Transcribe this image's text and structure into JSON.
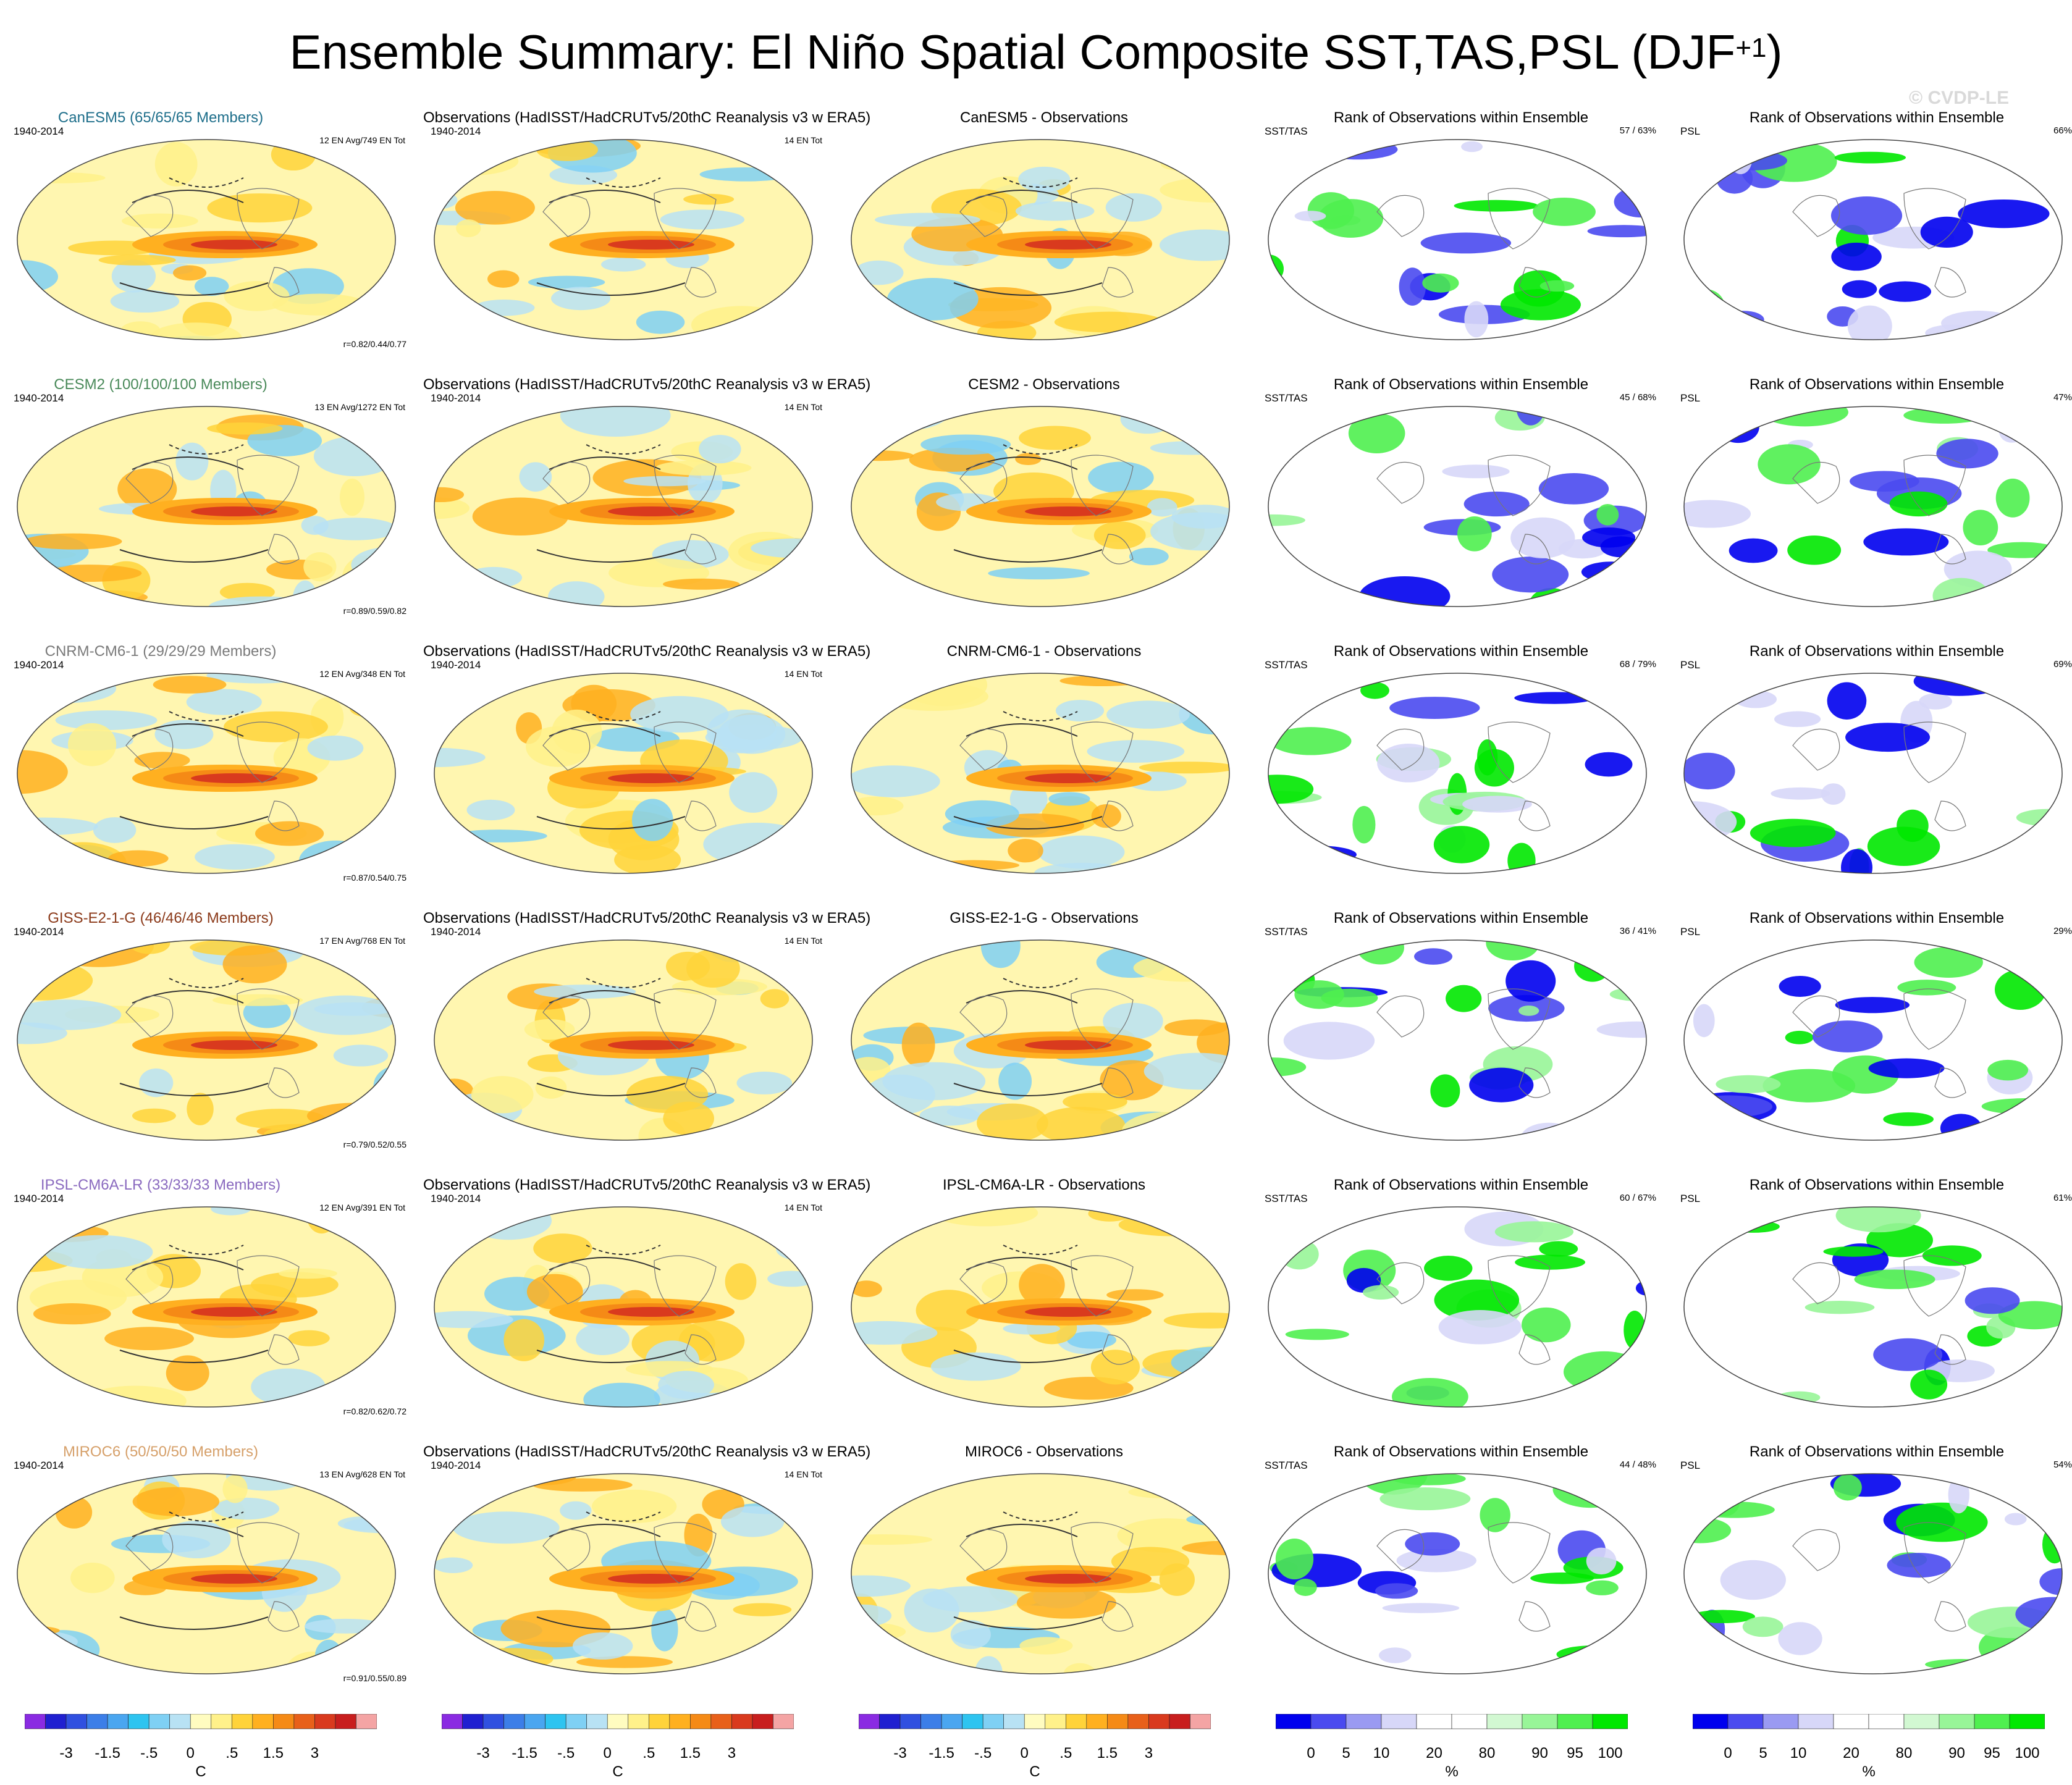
{
  "title": "Ensemble Summary: El Niño Spatial Composite SST,TAS,PSL (DJF",
  "title_sup": "+1",
  "title_close": ")",
  "watermark": "© CVDP-LE",
  "rows": [
    {
      "model": "CanESM5 (65/65/65 Members)",
      "model_color": "#1f6f8b",
      "en_avg": "12 EN Avg/749 EN Tot",
      "corr": "r=0.82/0.44/0.77",
      "diff_title": "CanESM5 - Observations",
      "sst_pct": "57 /  63%",
      "psl_pct": "66%"
    },
    {
      "model": "CESM2 (100/100/100 Members)",
      "model_color": "#4a8a5a",
      "en_avg": "13 EN Avg/1272 EN Tot",
      "corr": "r=0.89/0.59/0.82",
      "diff_title": "CESM2 - Observations",
      "sst_pct": "45 /  68%",
      "psl_pct": "47%"
    },
    {
      "model": "CNRM-CM6-1 (29/29/29 Members)",
      "model_color": "#7a7a7a",
      "en_avg": "12 EN Avg/348 EN Tot",
      "corr": "r=0.87/0.54/0.75",
      "diff_title": "CNRM-CM6-1 - Observations",
      "sst_pct": "68 /  79%",
      "psl_pct": "69%"
    },
    {
      "model": "GISS-E2-1-G (46/46/46 Members)",
      "model_color": "#8b3a1a",
      "en_avg": "17 EN Avg/768 EN Tot",
      "corr": "r=0.79/0.52/0.55",
      "diff_title": "GISS-E2-1-G - Observations",
      "sst_pct": "36 /  41%",
      "psl_pct": "29%"
    },
    {
      "model": "IPSL-CM6A-LR (33/33/33 Members)",
      "model_color": "#8a6abf",
      "en_avg": "12 EN Avg/391 EN Tot",
      "corr": "r=0.82/0.62/0.72",
      "diff_title": "IPSL-CM6A-LR - Observations",
      "sst_pct": "60 /  67%",
      "psl_pct": "61%"
    },
    {
      "model": "MIROC6 (50/50/50 Members)",
      "model_color": "#d6a06a",
      "en_avg": "13 EN Avg/628 EN Tot",
      "corr": "r=0.91/0.55/0.89",
      "diff_title": "MIROC6 - Observations",
      "sst_pct": "44 /  48%",
      "psl_pct": "54%"
    }
  ],
  "obs_title": "Observations (HadISST/HadCRUTv5/20thC Reanalysis v3 w ERA5)",
  "period": "1940-2014",
  "obs_en_tot": "14 EN Tot",
  "rank_title": "Rank of Observations within Ensemble",
  "rank_sst_label": "SST/TAS",
  "rank_psl_label": "PSL",
  "colorbars": {
    "temp": {
      "ticks": [
        "-3",
        "-1.5",
        "-.5",
        "0",
        ".5",
        "1.5",
        "3"
      ],
      "unit": "C",
      "colors": [
        "#8a2be2",
        "#2020d0",
        "#3050e0",
        "#3c7ee8",
        "#4aa6f0",
        "#2ec4f0",
        "#7fd0f4",
        "#b8e2f4",
        "#fffcc0",
        "#fff18a",
        "#ffd33a",
        "#ffb020",
        "#f58a16",
        "#e8601a",
        "#d93a1e",
        "#c81e1e",
        "#f4a4a4"
      ]
    },
    "rank": {
      "ticks": [
        "0",
        "5",
        "10",
        "20",
        "80",
        "90",
        "95",
        "100"
      ],
      "unit": "%",
      "colors": [
        "#0000ee",
        "#4a4aef",
        "#9a9af2",
        "#d7d7f8",
        "#ffffff",
        "#ffffff",
        "#d2f8d2",
        "#98f598",
        "#4fef4f",
        "#00e800"
      ]
    }
  }
}
